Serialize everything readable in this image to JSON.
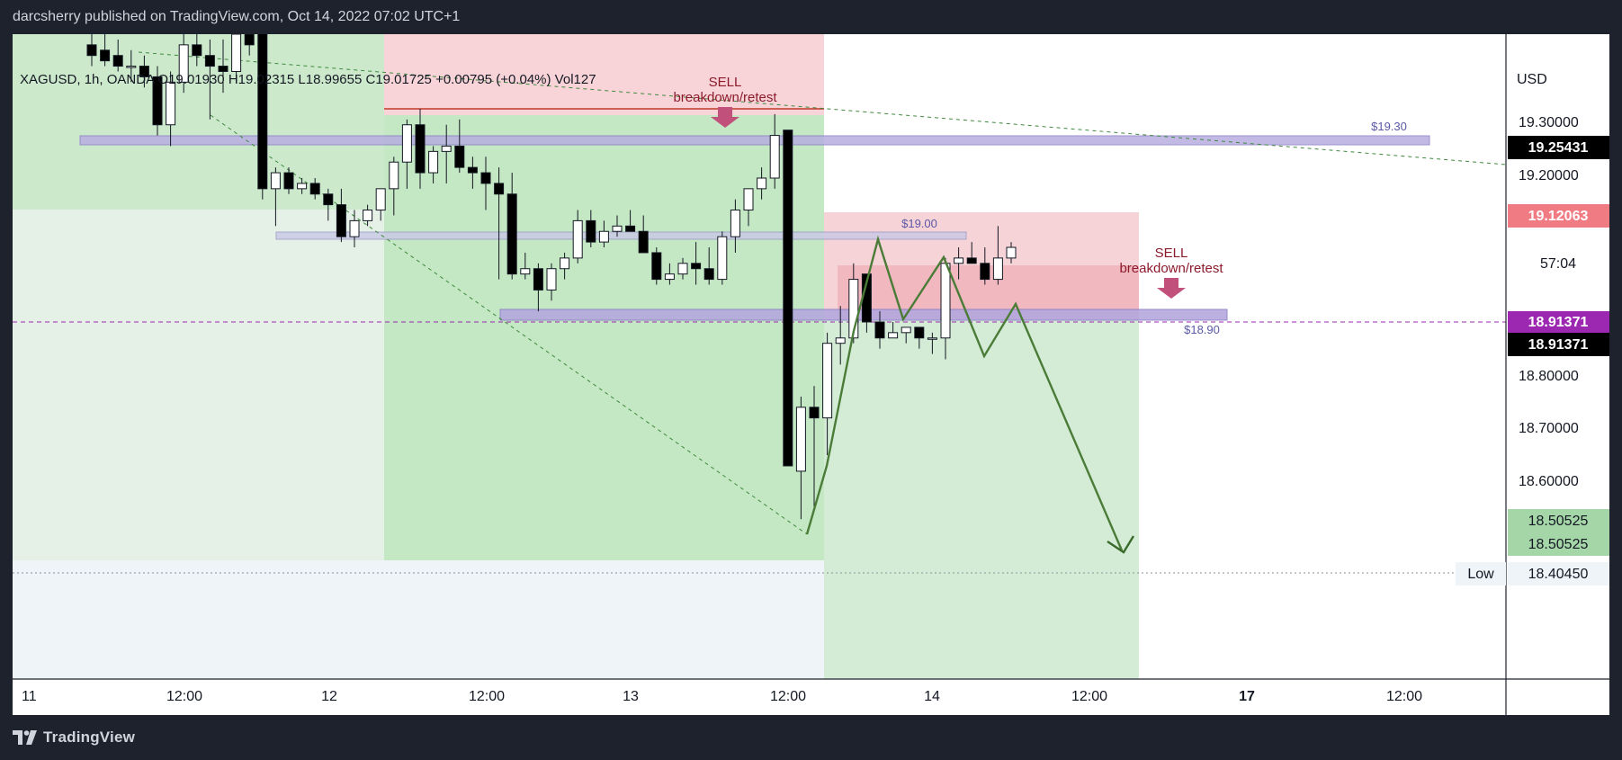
{
  "header": {
    "publisher_line": "darcsherry published on TradingView.com, Oct 14, 2022 07:02 UTC+1"
  },
  "footer": {
    "brand": "TradingView",
    "logo_icon": "tradingview-logo-icon"
  },
  "legend": {
    "symbol": "XAGUSD",
    "interval": "1h",
    "exchange": "OANDA",
    "open": "O19.01930",
    "high": "H19.02315",
    "low": "L18.99655",
    "close": "C19.01725",
    "change": "+0.00795 (+0.04%)",
    "volume": "Vol127"
  },
  "chart_data": {
    "type": "candlestick",
    "symbol": "XAGUSD",
    "currency": "USD",
    "x_tick_labels": [
      "11",
      "12:00",
      "12",
      "12:00",
      "13",
      "12:00",
      "14",
      "12:00",
      "17",
      "12:00"
    ],
    "y_tick_labels": [
      "19.30000",
      "19.20000",
      "18.80000",
      "18.70000",
      "18.60000"
    ],
    "y_range": [
      18.21,
      19.42
    ],
    "price_badges": {
      "current_price": "19.25431",
      "red_marker": "19.12063",
      "countdown": "57:04",
      "purple_marker": "18.91371",
      "black_marker": "18.91371",
      "green_marker_1": "18.50525",
      "green_marker_2": "18.50525",
      "low_label": "Low",
      "low_value": "18.40450"
    },
    "levels": [
      {
        "label": "$19.30",
        "price": 19.25
      },
      {
        "label": "$19.00",
        "price": 19.065
      },
      {
        "label": "$18.90",
        "price": 18.92
      }
    ],
    "annotations": [
      {
        "title": "SELL",
        "subtitle": "breakdown/retest",
        "color": "#8b1a2b"
      },
      {
        "title": "SELL",
        "subtitle": "breakdown/retest",
        "color": "#8b1a2b"
      }
    ],
    "candles": [
      {
        "o": 19.4,
        "h": 19.43,
        "l": 19.36,
        "c": 19.38
      },
      {
        "o": 19.39,
        "h": 19.43,
        "l": 19.36,
        "c": 19.37
      },
      {
        "o": 19.38,
        "h": 19.41,
        "l": 19.35,
        "c": 19.36
      },
      {
        "o": 19.36,
        "h": 19.39,
        "l": 19.33,
        "c": 19.36
      },
      {
        "o": 19.36,
        "h": 19.38,
        "l": 19.32,
        "c": 19.34
      },
      {
        "o": 19.34,
        "h": 19.36,
        "l": 19.23,
        "c": 19.25
      },
      {
        "o": 19.25,
        "h": 19.35,
        "l": 19.21,
        "c": 19.33
      },
      {
        "o": 19.33,
        "h": 19.42,
        "l": 19.31,
        "c": 19.4
      },
      {
        "o": 19.4,
        "h": 19.43,
        "l": 19.36,
        "c": 19.38
      },
      {
        "o": 19.38,
        "h": 19.41,
        "l": 19.26,
        "c": 19.36
      },
      {
        "o": 19.36,
        "h": 19.41,
        "l": 19.31,
        "c": 19.35
      },
      {
        "o": 19.35,
        "h": 19.43,
        "l": 19.33,
        "c": 19.42
      },
      {
        "o": 19.42,
        "h": 19.43,
        "l": 19.38,
        "c": 19.4
      },
      {
        "o": 19.43,
        "h": 19.43,
        "l": 19.11,
        "c": 19.13
      },
      {
        "o": 19.13,
        "h": 19.17,
        "l": 19.06,
        "c": 19.16
      },
      {
        "o": 19.16,
        "h": 19.17,
        "l": 19.12,
        "c": 19.13
      },
      {
        "o": 19.13,
        "h": 19.15,
        "l": 19.12,
        "c": 19.14
      },
      {
        "o": 19.14,
        "h": 19.15,
        "l": 19.11,
        "c": 19.12
      },
      {
        "o": 19.12,
        "h": 19.13,
        "l": 19.07,
        "c": 19.1
      },
      {
        "o": 19.1,
        "h": 19.13,
        "l": 19.03,
        "c": 19.04
      },
      {
        "o": 19.04,
        "h": 19.09,
        "l": 19.02,
        "c": 19.07
      },
      {
        "o": 19.07,
        "h": 19.1,
        "l": 19.06,
        "c": 19.09
      },
      {
        "o": 19.09,
        "h": 19.13,
        "l": 19.07,
        "c": 19.13
      },
      {
        "o": 19.13,
        "h": 19.19,
        "l": 19.08,
        "c": 19.18
      },
      {
        "o": 19.18,
        "h": 19.26,
        "l": 19.13,
        "c": 19.25
      },
      {
        "o": 19.25,
        "h": 19.28,
        "l": 19.13,
        "c": 19.16
      },
      {
        "o": 19.16,
        "h": 19.21,
        "l": 19.14,
        "c": 19.2
      },
      {
        "o": 19.2,
        "h": 19.25,
        "l": 19.14,
        "c": 19.21
      },
      {
        "o": 19.21,
        "h": 19.26,
        "l": 19.16,
        "c": 19.17
      },
      {
        "o": 19.17,
        "h": 19.19,
        "l": 19.13,
        "c": 19.16
      },
      {
        "o": 19.16,
        "h": 19.19,
        "l": 19.09,
        "c": 19.14
      },
      {
        "o": 19.14,
        "h": 19.17,
        "l": 18.96,
        "c": 19.12
      },
      {
        "o": 19.12,
        "h": 19.16,
        "l": 18.96,
        "c": 18.97
      },
      {
        "o": 18.97,
        "h": 19.01,
        "l": 18.96,
        "c": 18.98
      },
      {
        "o": 18.98,
        "h": 18.99,
        "l": 18.9,
        "c": 18.94
      },
      {
        "o": 18.94,
        "h": 18.99,
        "l": 18.92,
        "c": 18.98
      },
      {
        "o": 18.98,
        "h": 19.01,
        "l": 18.96,
        "c": 19.0
      },
      {
        "o": 19.0,
        "h": 19.09,
        "l": 18.99,
        "c": 19.07
      },
      {
        "o": 19.07,
        "h": 19.09,
        "l": 19.02,
        "c": 19.03
      },
      {
        "o": 19.03,
        "h": 19.07,
        "l": 19.02,
        "c": 19.05
      },
      {
        "o": 19.05,
        "h": 19.08,
        "l": 19.04,
        "c": 19.06
      },
      {
        "o": 19.06,
        "h": 19.09,
        "l": 19.05,
        "c": 19.05
      },
      {
        "o": 19.05,
        "h": 19.08,
        "l": 19.01,
        "c": 19.01
      },
      {
        "o": 19.01,
        "h": 19.02,
        "l": 18.95,
        "c": 18.96
      },
      {
        "o": 18.96,
        "h": 18.99,
        "l": 18.95,
        "c": 18.97
      },
      {
        "o": 18.97,
        "h": 19.0,
        "l": 18.96,
        "c": 18.99
      },
      {
        "o": 18.99,
        "h": 19.03,
        "l": 18.95,
        "c": 18.98
      },
      {
        "o": 18.98,
        "h": 19.02,
        "l": 18.95,
        "c": 18.96
      },
      {
        "o": 18.96,
        "h": 19.05,
        "l": 18.95,
        "c": 19.04
      },
      {
        "o": 19.04,
        "h": 19.11,
        "l": 19.01,
        "c": 19.09
      },
      {
        "o": 19.09,
        "h": 19.13,
        "l": 19.06,
        "c": 19.13
      },
      {
        "o": 19.13,
        "h": 19.17,
        "l": 19.11,
        "c": 19.15
      },
      {
        "o": 19.15,
        "h": 19.27,
        "l": 19.13,
        "c": 19.23
      },
      {
        "o": 19.24,
        "h": 19.24,
        "l": 18.61,
        "c": 18.61
      },
      {
        "o": 18.6,
        "h": 18.74,
        "l": 18.51,
        "c": 18.72
      },
      {
        "o": 18.72,
        "h": 18.76,
        "l": 18.53,
        "c": 18.7
      },
      {
        "o": 18.7,
        "h": 18.86,
        "l": 18.63,
        "c": 18.84
      },
      {
        "o": 18.84,
        "h": 18.91,
        "l": 18.8,
        "c": 18.85
      },
      {
        "o": 18.85,
        "h": 18.99,
        "l": 18.84,
        "c": 18.96
      },
      {
        "o": 18.97,
        "h": 18.97,
        "l": 18.86,
        "c": 18.88
      },
      {
        "o": 18.88,
        "h": 18.9,
        "l": 18.83,
        "c": 18.85
      },
      {
        "o": 18.85,
        "h": 18.88,
        "l": 18.85,
        "c": 18.86
      },
      {
        "o": 18.86,
        "h": 18.87,
        "l": 18.84,
        "c": 18.87
      },
      {
        "o": 18.87,
        "h": 18.87,
        "l": 18.83,
        "c": 18.85
      },
      {
        "o": 18.85,
        "h": 18.86,
        "l": 18.82,
        "c": 18.85
      },
      {
        "o": 18.85,
        "h": 19.0,
        "l": 18.81,
        "c": 18.99
      },
      {
        "o": 18.99,
        "h": 19.02,
        "l": 18.96,
        "c": 19.0
      },
      {
        "o": 19.0,
        "h": 19.03,
        "l": 18.99,
        "c": 18.99
      },
      {
        "o": 18.99,
        "h": 19.02,
        "l": 18.95,
        "c": 18.96
      },
      {
        "o": 18.96,
        "h": 19.06,
        "l": 18.95,
        "c": 19.0
      },
      {
        "o": 19.0,
        "h": 19.03,
        "l": 18.99,
        "c": 19.02
      }
    ]
  },
  "colors": {
    "bull_candle": "#ffffff",
    "bear_candle": "#000000",
    "level_band": "#9f90cf",
    "projection_line": "#4a7c38",
    "purple_price": "#9c27b0",
    "red_price": "#f07b83",
    "green_price": "#a5d6a7"
  }
}
